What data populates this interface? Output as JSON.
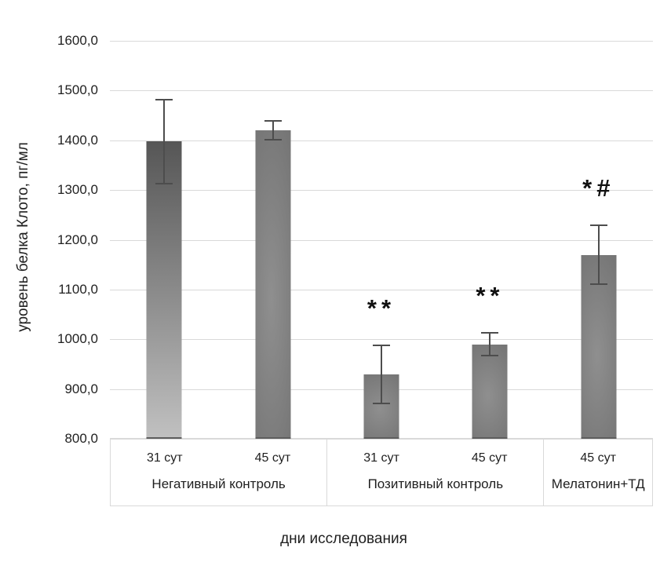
{
  "chart_data": {
    "type": "bar",
    "title": "",
    "ylabel": "уровень белка Клото, пг/мл",
    "xlabel": "дни исследования",
    "ylim": [
      800,
      1600
    ],
    "ytick_step": 100,
    "grid": true,
    "legend_position": "none",
    "yticks": [
      {
        "value": 1600,
        "label": "1600,0"
      },
      {
        "value": 1500,
        "label": "1500,0"
      },
      {
        "value": 1400,
        "label": "1400,0"
      },
      {
        "value": 1300,
        "label": "1300,0"
      },
      {
        "value": 1200,
        "label": "1200,0"
      },
      {
        "value": 1100,
        "label": "1100,0"
      },
      {
        "value": 1000,
        "label": "1000,0"
      },
      {
        "value": 900,
        "label": "900,0"
      },
      {
        "value": 800,
        "label": "800,0"
      }
    ],
    "groups": [
      {
        "label": "Негативный контроль",
        "bars": [
          {
            "label": "31 сут",
            "value": 1398,
            "error": 86,
            "annotation": "",
            "style": "fade"
          },
          {
            "label": "45 сут",
            "value": 1420,
            "error": 20,
            "annotation": "",
            "style": "sheen"
          }
        ]
      },
      {
        "label": "Позитивный контроль",
        "bars": [
          {
            "label": "31 сут",
            "value": 930,
            "error": 60,
            "annotation": "**",
            "style": "sheen"
          },
          {
            "label": "45 сут",
            "value": 990,
            "error": 25,
            "annotation": "**",
            "style": "sheen"
          }
        ]
      },
      {
        "label": "Мелатонин+ТД",
        "bars": [
          {
            "label": "45 сут",
            "value": 1170,
            "error": 60,
            "annotation": "*#",
            "style": "sheen"
          }
        ]
      }
    ]
  },
  "colors": {
    "page_bg": "#ffffff",
    "grid": "#d9d9d9",
    "band_border": "#d9d9d9",
    "tick_text": "#1f1f1f",
    "axis_title_text": "#1f1f1f",
    "annotation_text": "#111111",
    "error_bar": "#4d4d4d",
    "bar_dark": "#565656",
    "bar_mid": "#8f8f8f",
    "bar_light": "#c0c0c0",
    "bar_sheen_edge": "#6d6d6d",
    "bar_baseline": "#5e5e5e"
  }
}
